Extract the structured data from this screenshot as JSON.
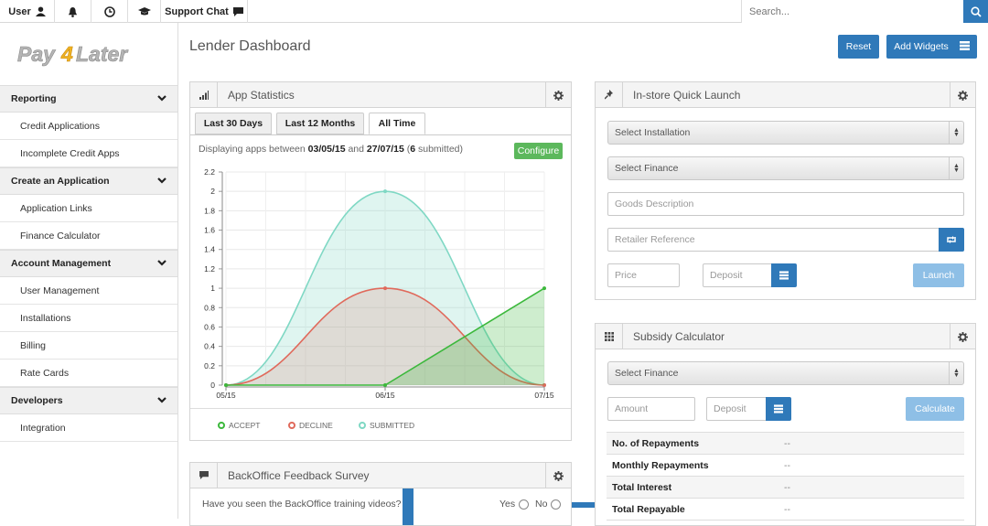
{
  "topbar": {
    "user_label": "User",
    "support_label": "Support Chat",
    "search_placeholder": "Search..."
  },
  "sidebar": {
    "logo_text": "Pay4Later",
    "sections": [
      {
        "label": "Reporting",
        "items": [
          "Credit Applications",
          "Incomplete Credit Apps"
        ]
      },
      {
        "label": "Create an Application",
        "items": [
          "Application Links",
          "Finance Calculator"
        ]
      },
      {
        "label": "Account Management",
        "items": [
          "User Management",
          "Installations",
          "Billing",
          "Rate Cards"
        ]
      },
      {
        "label": "Developers",
        "items": [
          "Integration"
        ]
      }
    ]
  },
  "page": {
    "title": "Lender Dashboard",
    "reset_label": "Reset",
    "add_widgets_label": "Add Widgets"
  },
  "app_stats": {
    "title": "App Statistics",
    "tabs": [
      "Last 30 Days",
      "Last 12 Months",
      "All Time"
    ],
    "active_tab": "All Time",
    "range_prefix": "Displaying apps between",
    "range_start": "03/05/15",
    "range_and": "and",
    "range_end": "27/07/15",
    "range_count": "6",
    "range_suffix": "submitted)",
    "configure_label": "Configure"
  },
  "chart_data": {
    "type": "area",
    "categories": [
      "05/15",
      "06/15",
      "07/15"
    ],
    "ylim": [
      0,
      2.2
    ],
    "yticks": [
      "0",
      "0.2",
      "0.4",
      "0.6",
      "0.8",
      "1",
      "1.2",
      "1.4",
      "1.6",
      "1.8",
      "2",
      "2.2"
    ],
    "series": [
      {
        "name": "ACCEPT",
        "values": [
          0,
          0,
          1
        ],
        "color": "#3cb83c"
      },
      {
        "name": "DECLINE",
        "values": [
          0,
          1,
          0
        ],
        "color": "#e06a5c"
      },
      {
        "name": "SUBMITTED",
        "values": [
          0,
          2,
          0
        ],
        "color": "#7fd8c4"
      }
    ]
  },
  "quick_launch": {
    "title": "In-store Quick Launch",
    "installation_select": "Select Installation",
    "finance_select": "Select Finance",
    "goods_placeholder": "Goods Description",
    "retailer_placeholder": "Retailer Reference",
    "price_placeholder": "Price",
    "deposit_placeholder": "Deposit",
    "launch_label": "Launch"
  },
  "subsidy": {
    "title": "Subsidy Calculator",
    "finance_select": "Select Finance",
    "amount_placeholder": "Amount",
    "deposit_placeholder": "Deposit",
    "calculate_label": "Calculate",
    "rows": [
      {
        "label": "No. of Repayments",
        "value": "--"
      },
      {
        "label": "Monthly Repayments",
        "value": "--"
      },
      {
        "label": "Total Interest",
        "value": "--"
      },
      {
        "label": "Total Repayable",
        "value": "--"
      }
    ]
  },
  "survey": {
    "title": "BackOffice Feedback Survey",
    "question": "Have you seen the BackOffice training videos?",
    "yes_label": "Yes",
    "no_label": "No"
  },
  "colors": {
    "primary": "#2f79b9",
    "configure": "#5cb85c",
    "launch_disabled": "#8ebfe6"
  }
}
